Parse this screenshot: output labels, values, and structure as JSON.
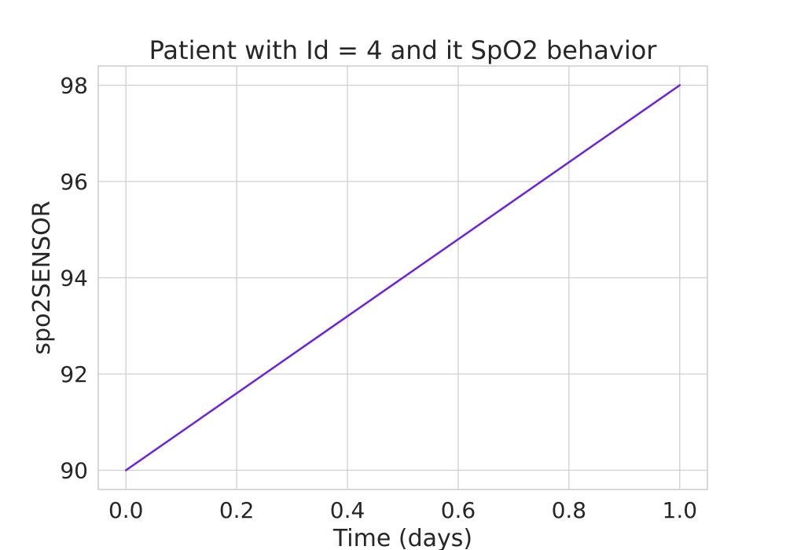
{
  "chart_data": {
    "type": "line",
    "title": "Patient with Id = 4 and it SpO2 behavior",
    "xlabel": "Time (days)",
    "ylabel": "spo2SENSOR",
    "xlim": [
      -0.05,
      1.05
    ],
    "ylim": [
      89.6,
      98.4
    ],
    "x_ticks": [
      0.0,
      0.2,
      0.4,
      0.6,
      0.8,
      1.0
    ],
    "x_tick_labels": [
      "0.0",
      "0.2",
      "0.4",
      "0.6",
      "0.8",
      "1.0"
    ],
    "y_ticks": [
      90,
      92,
      94,
      96,
      98
    ],
    "y_tick_labels": [
      "90",
      "92",
      "94",
      "96",
      "98"
    ],
    "grid": true,
    "series": [
      {
        "x": [
          0.0,
          1.0
        ],
        "y": [
          90,
          98
        ],
        "color": "#6b21e0"
      }
    ]
  }
}
